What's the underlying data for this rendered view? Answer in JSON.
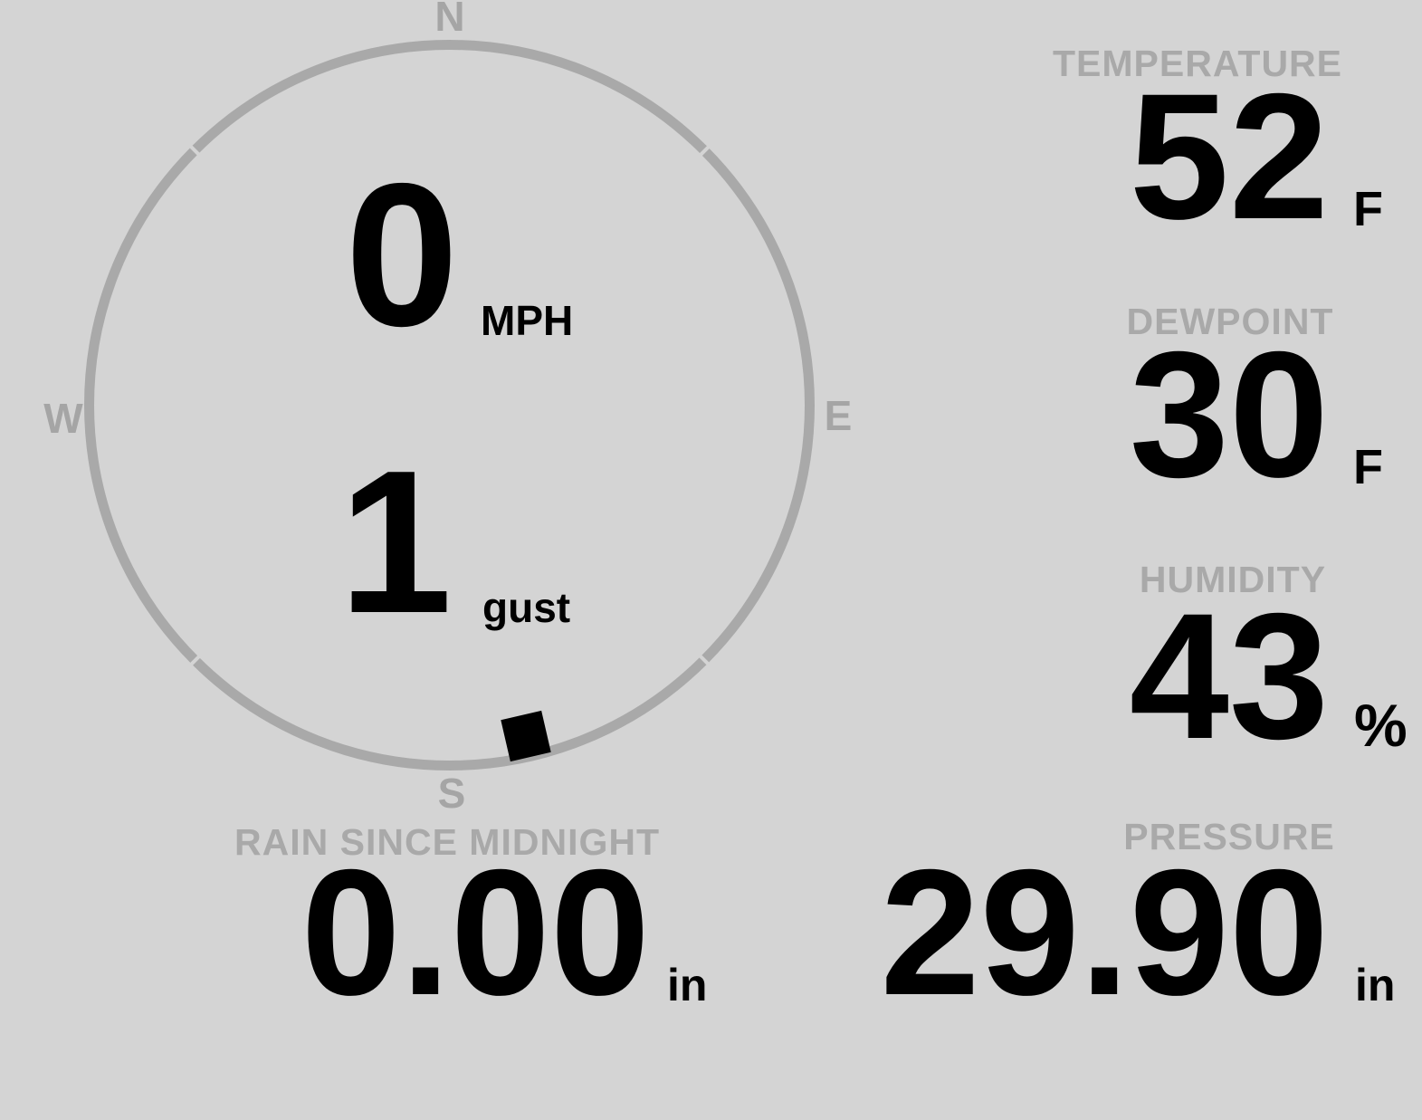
{
  "colors": {
    "background": "#d4d4d4",
    "gauge_gray": "#a9a9a9",
    "value_black": "#000000"
  },
  "wind_gauge": {
    "compass_points": {
      "north": "N",
      "east": "E",
      "south": "S",
      "west": "W"
    },
    "speed": {
      "value": "0",
      "unit": "MPH"
    },
    "gust": {
      "value": "1",
      "unit": "gust"
    },
    "direction_marker_bearing_deg": 167
  },
  "metrics": {
    "temperature": {
      "label": "TEMPERATURE",
      "value": "52",
      "unit": "F"
    },
    "dewpoint": {
      "label": "DEWPOINT",
      "value": "30",
      "unit": "F"
    },
    "humidity": {
      "label": "HUMIDITY",
      "value": "43",
      "unit": "%"
    },
    "rain": {
      "label": "RAIN SINCE MIDNIGHT",
      "value": "0.00",
      "unit": "in"
    },
    "pressure": {
      "label": "PRESSURE",
      "value": "29.90",
      "unit": "in"
    }
  }
}
